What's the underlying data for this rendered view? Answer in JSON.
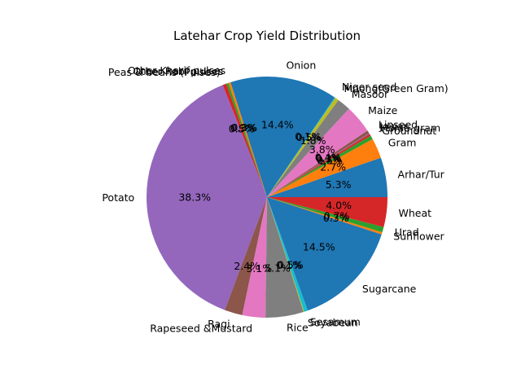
{
  "chart_data": {
    "type": "pie",
    "title": "Latehar Crop Yield Distribution",
    "start_angle_deg": 0,
    "direction": "counterclockwise",
    "slices": [
      {
        "label": "Arhar/Tur",
        "value": 5.3,
        "pct_label": "5.3%",
        "color": "#1f77b4"
      },
      {
        "label": "Gram",
        "value": 2.7,
        "pct_label": "2.7%",
        "color": "#ff7f0e"
      },
      {
        "label": "Groundnut",
        "value": 0.5,
        "pct_label": "0.5%",
        "color": "#2ca02c"
      },
      {
        "label": "Horse-gram",
        "value": 0.3,
        "pct_label": "0.3%",
        "color": "#d62728"
      },
      {
        "label": "Jowar",
        "value": 0.1,
        "pct_label": "0.1%",
        "color": "#9467bd"
      },
      {
        "label": "Linseed",
        "value": 0.4,
        "pct_label": "0.4%",
        "color": "#8c564b"
      },
      {
        "label": "Maize",
        "value": 3.8,
        "pct_label": "3.8%",
        "color": "#e377c2"
      },
      {
        "label": "Masoor",
        "value": 1.8,
        "pct_label": "1.8%",
        "color": "#7f7f7f"
      },
      {
        "label": "Moong(Green Gram)",
        "value": 0.5,
        "pct_label": "0.5%",
        "color": "#bcbd22"
      },
      {
        "label": "Niger seed",
        "value": 0.1,
        "pct_label": "0.1%",
        "color": "#17becf"
      },
      {
        "label": "Onion",
        "value": 14.4,
        "pct_label": "14.4%",
        "color": "#1f77b4"
      },
      {
        "label": "Other Kharif pulses",
        "value": 0.3,
        "pct_label": "0.3%",
        "color": "#ff7f0e"
      },
      {
        "label": "Other Rabi pulses",
        "value": 0.3,
        "pct_label": "0.3%",
        "color": "#2ca02c"
      },
      {
        "label": "Peas & beans (Pulses)",
        "value": 0.5,
        "pct_label": "0.5%",
        "color": "#d62728"
      },
      {
        "label": "Potato",
        "value": 38.3,
        "pct_label": "38.3%",
        "color": "#9467bd"
      },
      {
        "label": "Ragi",
        "value": 2.4,
        "pct_label": "2.4%",
        "color": "#8c564b"
      },
      {
        "label": "Rapeseed &Mustard",
        "value": 3.1,
        "pct_label": "3.1%",
        "color": "#e377c2"
      },
      {
        "label": "Rice",
        "value": 5.1,
        "pct_label": "5.1%",
        "color": "#7f7f7f"
      },
      {
        "label": "Soyabean",
        "value": 0.1,
        "pct_label": "0.1%",
        "color": "#bcbd22"
      },
      {
        "label": "Sesamum",
        "value": 0.5,
        "pct_label": "0.5%",
        "color": "#17becf"
      },
      {
        "label": "Sugarcane",
        "value": 14.5,
        "pct_label": "14.5%",
        "color": "#1f77b4"
      },
      {
        "label": "Sunflower",
        "value": 0.3,
        "pct_label": "0.3%",
        "color": "#ff7f0e"
      },
      {
        "label": "Urad",
        "value": 0.7,
        "pct_label": "0.7%",
        "color": "#2ca02c"
      },
      {
        "label": "Wheat",
        "value": 4.0,
        "pct_label": "4.0%",
        "color": "#d62728"
      }
    ]
  }
}
